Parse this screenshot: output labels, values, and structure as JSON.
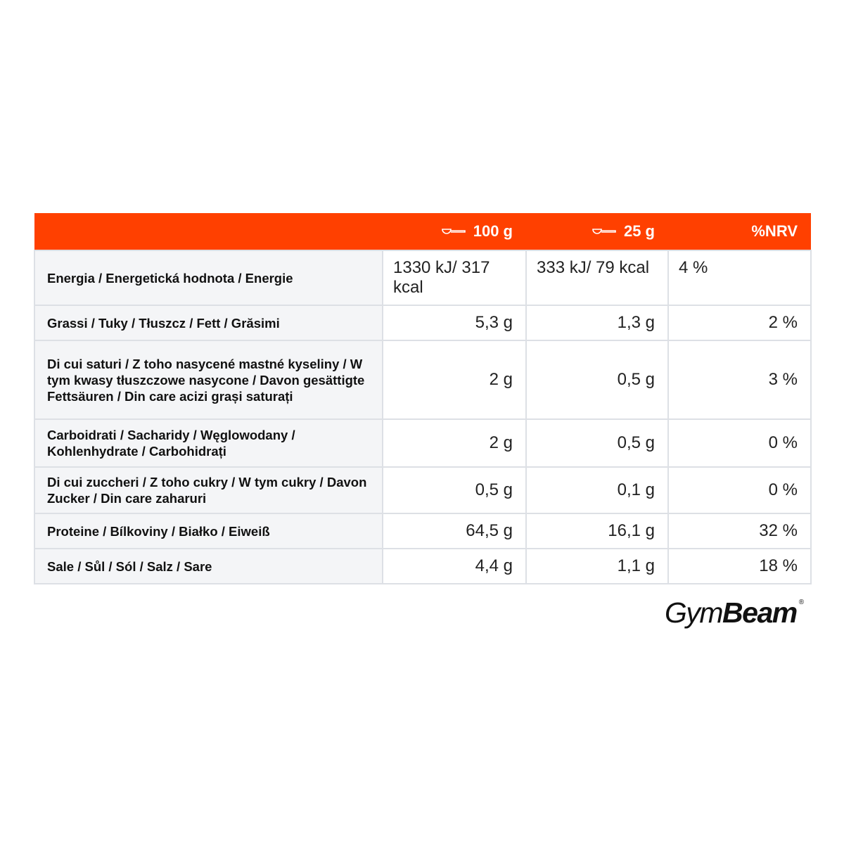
{
  "header": [
    "100 g",
    "25 g",
    "%NRV"
  ],
  "rows": [
    [
      "Energia / Energetická hodnota / Energie",
      "1330 kJ/ 317 kcal",
      "333 kJ/ 79 kcal",
      "4 %"
    ],
    [
      "Grassi / Tuky / Tłuszcz / Fett / Grăsimi",
      "5,3 g",
      "1,3 g",
      "2 %"
    ],
    [
      "Di cui saturi / Z toho nasycené mastné kyseliny / W tym kwasy tłuszczowe nasycone / Davon gesättigte Fettsäuren / Din care acizi grași saturați",
      "2 g",
      "0,5 g",
      "3 %"
    ],
    [
      "Carboidrati / Sacharidy / Węglowodany / Kohlenhydrate / Carbohidrați",
      "2 g",
      "0,5 g",
      "0 %"
    ],
    [
      "Di cui zuccheri / Z toho cukry / W tym cukry / Davon Zucker / Din care zaharuri",
      "0,5 g",
      "0,1 g",
      "0 %"
    ],
    [
      "Proteine / Bílkoviny / Białko / Eiweiß",
      "64,5 g",
      "16,1 g",
      "32 %"
    ],
    [
      "Sale / Sůl / Sól / Salz / Sare",
      "4,4 g",
      "1,1 g",
      "18 %"
    ]
  ],
  "logo": {
    "light": "Gym",
    "bold": "Beam",
    "mark": "®"
  }
}
